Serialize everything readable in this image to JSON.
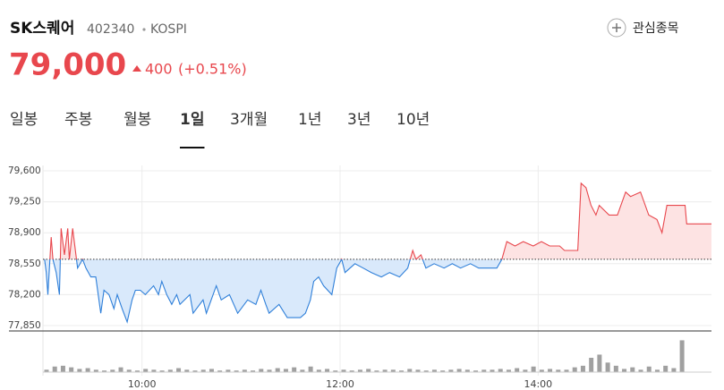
{
  "stock": {
    "name": "SK스퀘어",
    "code": "402340",
    "market": "KOSPI",
    "price": "79,000",
    "change": "400",
    "change_pct": "(+0.51%)"
  },
  "watch_button": "관심종목",
  "tabs": [
    "일봉",
    "주봉",
    "월봉",
    "1일",
    "3개월",
    "1년",
    "3년",
    "10년"
  ],
  "active_tab": 3,
  "chart_data": [
    {
      "type": "line",
      "x": [
        541,
        542,
        543,
        545,
        546,
        548,
        550,
        551,
        553,
        555,
        556,
        558,
        559,
        561,
        564,
        566,
        569,
        572,
        575,
        577,
        580,
        583,
        585,
        588,
        591,
        594,
        596,
        599,
        602,
        607,
        610,
        612,
        615,
        618,
        621,
        623,
        629,
        631,
        637,
        639,
        645,
        648,
        653,
        658,
        664,
        669,
        672,
        675,
        677,
        683,
        688,
        696,
        699,
        702,
        704,
        707,
        710,
        715,
        718,
        721,
        723,
        729,
        734,
        739,
        745,
        750,
        756,
        761,
        764,
        766,
        769,
        772,
        777,
        783,
        788,
        793,
        799,
        804,
        810,
        815,
        818,
        821,
        826,
        831,
        837,
        842,
        847,
        853,
        856,
        864,
        866,
        869,
        872,
        875,
        877,
        883,
        888,
        893,
        896,
        902,
        907,
        912,
        915,
        918,
        929,
        930,
        945
      ],
      "values": [
        78600,
        78450,
        78200,
        78850,
        78600,
        78450,
        78200,
        78950,
        78650,
        78950,
        78600,
        78950,
        78800,
        78500,
        78600,
        78500,
        78400,
        78400,
        77990,
        78250,
        78200,
        78040,
        78200,
        78040,
        77890,
        78140,
        78250,
        78250,
        78200,
        78300,
        78200,
        78350,
        78200,
        78090,
        78200,
        78090,
        78200,
        77990,
        78140,
        77990,
        78300,
        78140,
        78200,
        77990,
        78140,
        78090,
        78250,
        78090,
        77990,
        78090,
        77940,
        77940,
        77990,
        78140,
        78350,
        78400,
        78300,
        78200,
        78500,
        78600,
        78450,
        78550,
        78500,
        78450,
        78400,
        78450,
        78400,
        78500,
        78700,
        78600,
        78650,
        78500,
        78550,
        78500,
        78550,
        78500,
        78550,
        78500,
        78500,
        78500,
        78600,
        78800,
        78750,
        78800,
        78750,
        78800,
        78750,
        78750,
        78700,
        78700,
        79460,
        79410,
        79210,
        79100,
        79210,
        79100,
        79100,
        79360,
        79310,
        79360,
        79100,
        79050,
        78900,
        79210,
        79210,
        79000,
        79000
      ],
      "baseline": 78600,
      "up_color": "#e8474d",
      "down_color": "#2e7fd9",
      "up_fill": "#fde3e3",
      "down_fill": "#d9e9fb",
      "xlim": [
        540,
        945
      ],
      "xticks": [
        {
          "value": 600,
          "label": "10:00"
        },
        {
          "value": 720,
          "label": "12:00"
        },
        {
          "value": 840,
          "label": "14:00"
        }
      ],
      "ylim": [
        77850,
        79600
      ],
      "yticks": [
        {
          "value": 77850,
          "label": "77,850"
        },
        {
          "value": 78200,
          "label": "78,200"
        },
        {
          "value": 78550,
          "label": "78,550"
        },
        {
          "value": 78900,
          "label": "78,900"
        },
        {
          "value": 79250,
          "label": "79,250"
        },
        {
          "value": 79600,
          "label": "79,600"
        }
      ],
      "grid": true
    },
    {
      "type": "bar",
      "x": [
        540,
        545,
        550,
        555,
        560,
        565,
        570,
        575,
        580,
        585,
        590,
        595,
        600,
        605,
        610,
        615,
        620,
        625,
        630,
        635,
        640,
        645,
        650,
        655,
        660,
        665,
        670,
        675,
        680,
        685,
        690,
        695,
        700,
        705,
        710,
        715,
        720,
        725,
        730,
        735,
        740,
        745,
        750,
        755,
        760,
        765,
        770,
        775,
        780,
        785,
        790,
        795,
        800,
        805,
        810,
        815,
        820,
        825,
        830,
        835,
        840,
        845,
        850,
        855,
        860,
        865,
        870,
        875,
        880,
        885,
        890,
        895,
        900,
        905,
        910,
        915,
        920,
        925
      ],
      "values": [
        3,
        7,
        8,
        6,
        4,
        5,
        3,
        2,
        3,
        6,
        3,
        2,
        4,
        3,
        2,
        3,
        5,
        3,
        2,
        3,
        4,
        2,
        3,
        2,
        3,
        2,
        4,
        3,
        5,
        4,
        6,
        3,
        7,
        3,
        4,
        2,
        3,
        2,
        3,
        4,
        2,
        3,
        3,
        2,
        4,
        3,
        2,
        3,
        2,
        3,
        4,
        3,
        2,
        3,
        3,
        4,
        3,
        5,
        3,
        7,
        3,
        4,
        3,
        3,
        6,
        8,
        18,
        22,
        12,
        8,
        4,
        6,
        3,
        7,
        3,
        8,
        5,
        40
      ],
      "color": "#a0a0a0",
      "xlim": [
        540,
        945
      ],
      "ylim": [
        0,
        45
      ]
    }
  ]
}
